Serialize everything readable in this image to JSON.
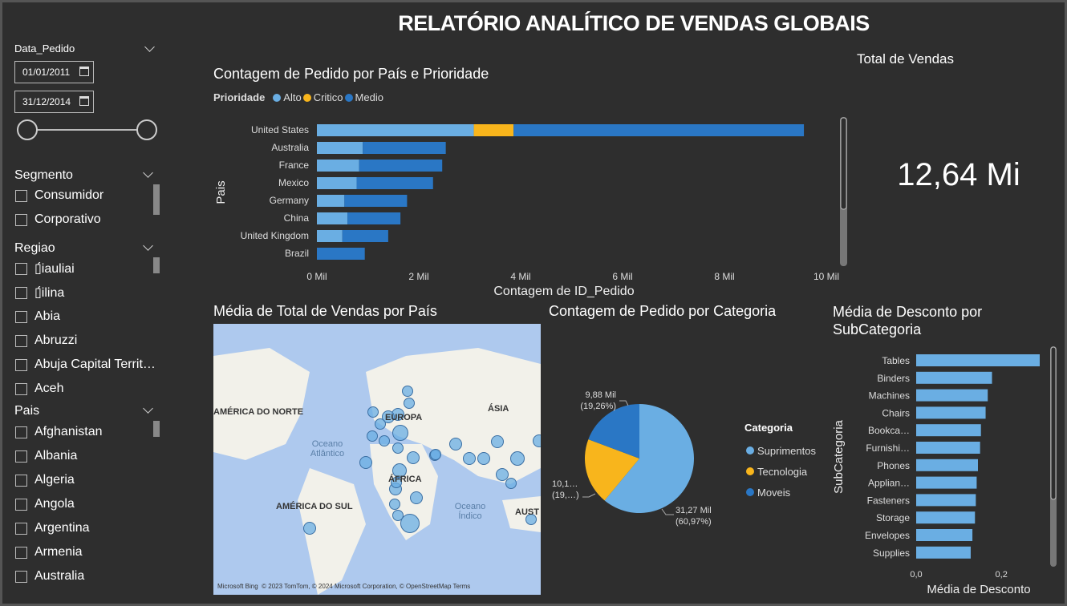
{
  "title": "RELATÓRIO ANALÍTICO DE VENDAS GLOBAIS",
  "filters": {
    "date": {
      "label": "Data_Pedido",
      "start": "01/01/2011",
      "end": "31/12/2014"
    },
    "segmento": {
      "label": "Segmento",
      "items": [
        "Consumidor",
        "Corporativo"
      ]
    },
    "regiao": {
      "label": "Regiao",
      "items": [
        "▯́iauliai",
        "▯́ilina",
        "Abia",
        "Abruzzi",
        "Abuja Capital Territ…",
        "Aceh"
      ]
    },
    "pais": {
      "label": "Pais",
      "items": [
        "Afghanistan",
        "Albania",
        "Algeria",
        "Angola",
        "Argentina",
        "Armenia",
        "Australia"
      ]
    }
  },
  "kpi": {
    "label": "Total de Vendas",
    "value": "12,64 Mi"
  },
  "colors": {
    "alto": "#6aaee3",
    "critico": "#f8b51c",
    "medio": "#2a77c5"
  },
  "chart_data": [
    {
      "type": "bar",
      "orientation": "horizontal-stacked",
      "title": "Contagem de Pedido por País e Prioridade",
      "legend_title": "Prioridade",
      "xlabel": "Contagem de ID_Pedido",
      "ylabel": "Pais",
      "xlim": [
        0,
        10000
      ],
      "x_ticks": [
        "0 Mil",
        "2 Mil",
        "4 Mil",
        "6 Mil",
        "8 Mil",
        "10 Mil"
      ],
      "categories": [
        "United States",
        "Australia",
        "France",
        "Mexico",
        "Germany",
        "China",
        "United Kingdom",
        "Brazil"
      ],
      "series": [
        {
          "name": "Alto",
          "values": [
            3080,
            900,
            830,
            780,
            540,
            600,
            500,
            0
          ]
        },
        {
          "name": "Critico",
          "values": [
            780,
            0,
            0,
            0,
            0,
            0,
            0,
            0
          ]
        },
        {
          "name": "Medio",
          "values": [
            5700,
            1630,
            1630,
            1500,
            1230,
            1040,
            900,
            940
          ]
        }
      ]
    },
    {
      "type": "pie",
      "title": "Contagem de Pedido por Categoria",
      "legend_title": "Categoria",
      "categories": [
        "Suprimentos",
        "Tecnologia",
        "Moveis"
      ],
      "values": [
        31270,
        10100,
        9880
      ],
      "data_labels": [
        [
          "31,27 Mil",
          "(60,97%)"
        ],
        [
          "10,1…",
          "(19,…)"
        ],
        [
          "9,88 Mil",
          "(19,26%)"
        ]
      ]
    },
    {
      "type": "bar",
      "orientation": "horizontal",
      "title": "Média de Desconto por SubCategoria",
      "xlabel": "Média de Desconto",
      "ylabel": "SubCategoria",
      "xlim": [
        0,
        0.29
      ],
      "x_ticks": [
        "0,0",
        "0,2"
      ],
      "categories": [
        "Tables",
        "Binders",
        "Machines",
        "Chairs",
        "Bookca…",
        "Furnishi…",
        "Phones",
        "Applian…",
        "Fasteners",
        "Storage",
        "Envelopes",
        "Supplies"
      ],
      "values": [
        0.29,
        0.178,
        0.168,
        0.163,
        0.152,
        0.15,
        0.145,
        0.142,
        0.14,
        0.138,
        0.132,
        0.128
      ]
    }
  ],
  "map": {
    "title": "Média de Total de Vendas por País",
    "labels": [
      "AMÉRICA DO NORTE",
      "EUROPA",
      "ÁSIA",
      "ÁFRICA",
      "AMÉRICA DO SUL",
      "AUST"
    ],
    "oceans": [
      "Oceano Atlântico",
      "Oceano Índico"
    ],
    "credit": "© 2023 TomTom, © 2024 Microsoft Corporation, © OpenStreetMap  Terms",
    "bing": "Microsoft Bing"
  }
}
